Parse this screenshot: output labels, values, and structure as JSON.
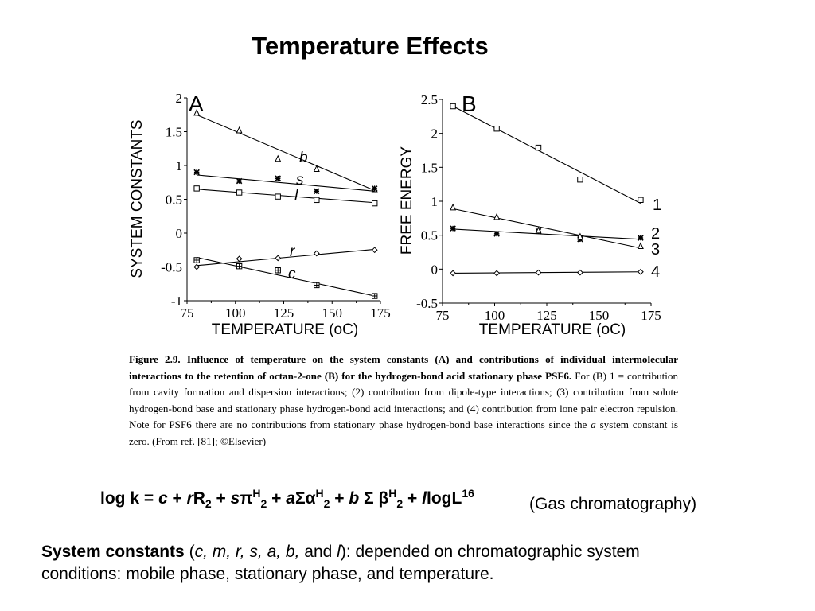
{
  "slide": {
    "title": "Temperature Effects"
  },
  "chart_data": [
    {
      "type": "scatter",
      "panel": "A",
      "xlabel": "TEMPERATURE (oC)",
      "ylabel": "SYSTEM CONSTANTS",
      "xlim": [
        75,
        175
      ],
      "ylim": [
        -1,
        2
      ],
      "xticks": [
        "75",
        "100",
        "125",
        "150",
        "175"
      ],
      "yticks": [
        "2",
        "1.5",
        "1",
        "0.5",
        "0",
        "-0.5",
        "-1"
      ],
      "series": [
        {
          "name": "b",
          "marker": "triangle",
          "x": [
            80,
            102,
            122,
            142,
            172
          ],
          "y": [
            1.78,
            1.52,
            1.1,
            0.95,
            0.65
          ],
          "fit": [
            [
              80,
              1.75
            ],
            [
              172,
              0.63
            ]
          ]
        },
        {
          "name": "s",
          "marker": "star",
          "x": [
            80,
            102,
            122,
            142,
            172
          ],
          "y": [
            0.9,
            0.77,
            0.81,
            0.62,
            0.66
          ],
          "fit": [
            [
              80,
              0.86
            ],
            [
              172,
              0.62
            ]
          ]
        },
        {
          "name": "l",
          "marker": "square",
          "x": [
            80,
            102,
            122,
            142,
            172
          ],
          "y": [
            0.66,
            0.6,
            0.54,
            0.49,
            0.44
          ],
          "fit": [
            [
              80,
              0.65
            ],
            [
              172,
              0.45
            ]
          ]
        },
        {
          "name": "r",
          "marker": "diamond",
          "x": [
            80,
            102,
            122,
            142,
            172
          ],
          "y": [
            -0.5,
            -0.38,
            -0.37,
            -0.3,
            -0.25
          ],
          "fit": [
            [
              80,
              -0.48
            ],
            [
              172,
              -0.24
            ]
          ]
        },
        {
          "name": "c",
          "marker": "boxplus",
          "x": [
            80,
            102,
            122,
            142,
            172
          ],
          "y": [
            -0.4,
            -0.49,
            -0.55,
            -0.77,
            -0.93
          ],
          "fit": [
            [
              80,
              -0.36
            ],
            [
              172,
              -0.93
            ]
          ]
        }
      ]
    },
    {
      "type": "scatter",
      "panel": "B",
      "xlabel": "TEMPERATURE  (oC)",
      "ylabel": "FREE ENERGY",
      "xlim": [
        75,
        175
      ],
      "ylim": [
        -0.5,
        2.5
      ],
      "xticks": [
        "75",
        "100",
        "125",
        "150",
        "175"
      ],
      "yticks": [
        "2.5",
        "2",
        "1.5",
        "1",
        "0.5",
        "0",
        "-0.5"
      ],
      "series": [
        {
          "name": "1",
          "marker": "square",
          "x": [
            80,
            101,
            121,
            141,
            170
          ],
          "y": [
            2.4,
            2.07,
            1.79,
            1.32,
            1.02
          ],
          "fit": [
            [
              80,
              2.4
            ],
            [
              170,
              0.97
            ]
          ]
        },
        {
          "name": "2",
          "marker": "star",
          "x": [
            80,
            101,
            121,
            141,
            170
          ],
          "y": [
            0.6,
            0.52,
            0.56,
            0.44,
            0.46
          ],
          "fit": [
            [
              80,
              0.59
            ],
            [
              170,
              0.44
            ]
          ]
        },
        {
          "name": "3",
          "marker": "triangle",
          "x": [
            80,
            101,
            121,
            141,
            170
          ],
          "y": [
            0.91,
            0.77,
            0.57,
            0.48,
            0.34
          ],
          "fit": [
            [
              80,
              0.89
            ],
            [
              170,
              0.31
            ]
          ]
        },
        {
          "name": "4",
          "marker": "diamond",
          "x": [
            80,
            101,
            121,
            141,
            170
          ],
          "y": [
            -0.06,
            -0.06,
            -0.05,
            -0.05,
            -0.04
          ],
          "fit": [
            [
              80,
              -0.06
            ],
            [
              170,
              -0.04
            ]
          ]
        }
      ]
    }
  ],
  "caption": {
    "figure_label": "Figure 2.9.",
    "intro": "Influence of temperature on the system constants (A) and contributions of individual intermolecular interactions to the retention of octan-2-one (B) for the hydrogen-bond acid stationary phase PSF6.",
    "body": "For (B) 1 = contribution from cavity formation and dispersion interactions; (2) contribution from dipole-type interactions; (3) contribution from solute hydrogen-bond base and stationary phase hydrogen-bond acid interactions; and (4) contribution from lone pair electron repulsion. Note for PSF6 there are no contributions from stationary phase hydrogen-bond base interactions since the",
    "italic_word": "a",
    "tail": "system constant is zero. (From ref. [81]; ©Elsevier)"
  },
  "equation": {
    "lhs": "log k = ",
    "c": "c",
    "plus": " + ",
    "r": "r",
    "R": "R",
    "sub2": "2",
    "s": "s",
    "pi": "π",
    "supH": "H",
    "a": "a",
    "sigma_alpha": "Σα",
    "b": "b",
    "sigma": " Σ ",
    "beta": "β",
    "l": "l",
    "logL": "logL",
    "sup16": "16",
    "note": "(Gas chromatography)"
  },
  "bottom": {
    "term": "System constants",
    "open": " (",
    "params": "c, m, r, s, a, b,",
    "and": " and ",
    "param_l": "l",
    "rest_line1": "):  depended on chromatographic system",
    "rest_line2": " conditions: mobile phase, stationary phase, and temperature."
  }
}
